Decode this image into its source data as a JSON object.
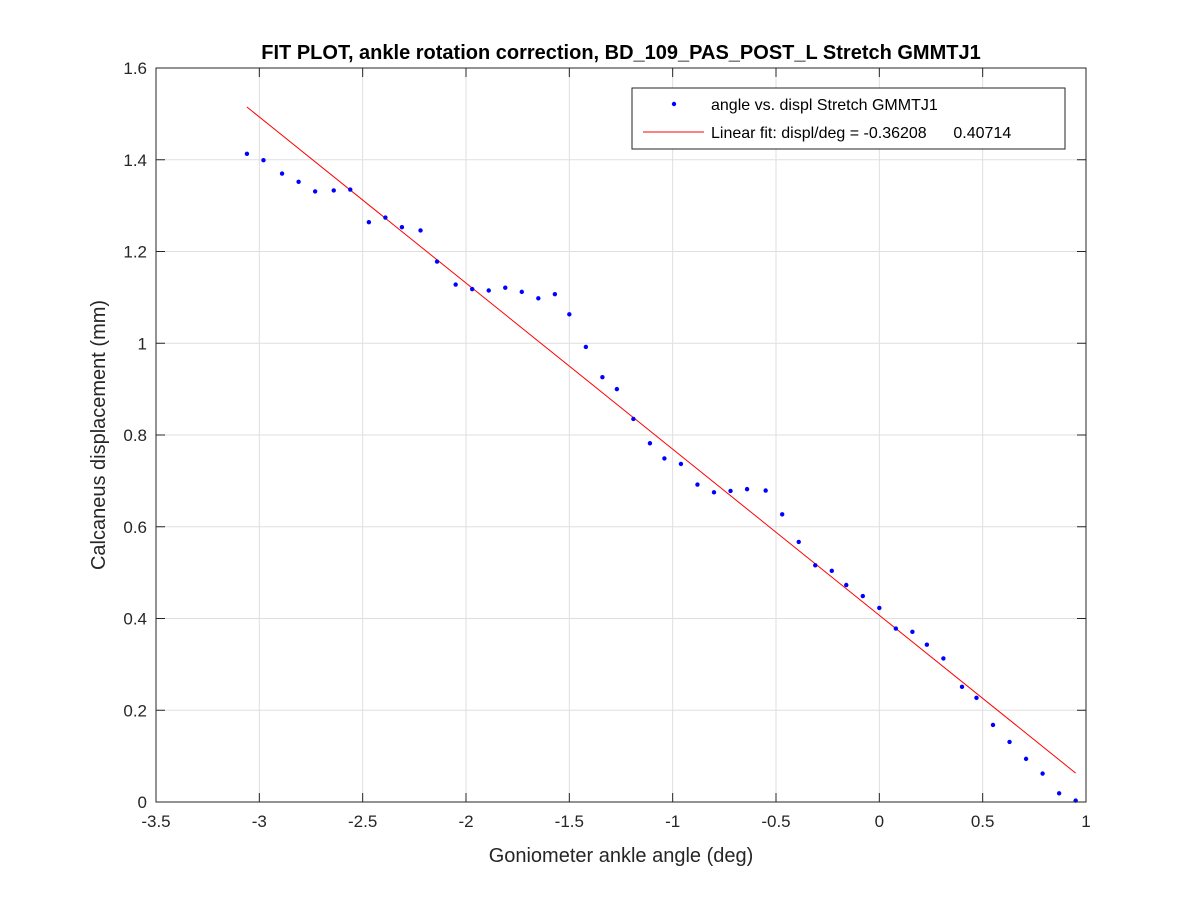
{
  "chart_data": {
    "type": "scatter",
    "title": "FIT PLOT, ankle rotation correction, BD_109_PAS_POST_L Stretch GMMTJ1",
    "xlabel": "Goniometer ankle angle (deg)",
    "ylabel": "Calcaneus displacement (mm)",
    "xlim": [
      -3.5,
      1
    ],
    "ylim": [
      0,
      1.6
    ],
    "xticks": [
      -3.5,
      -3,
      -2.5,
      -2,
      -1.5,
      -1,
      -0.5,
      0,
      0.5,
      1
    ],
    "yticks": [
      0,
      0.2,
      0.4,
      0.6,
      0.8,
      1,
      1.2,
      1.4,
      1.6
    ],
    "xtick_labels": [
      "-3.5",
      "-3",
      "-2.5",
      "-2",
      "-1.5",
      "-1",
      "-0.5",
      "0",
      "0.5",
      "1"
    ],
    "ytick_labels": [
      "0",
      "0.2",
      "0.4",
      "0.6",
      "0.8",
      "1",
      "1.2",
      "1.4",
      "1.6"
    ],
    "grid": true,
    "legend_position": "top-right",
    "series": [
      {
        "name": "angle vs. displ Stretch GMMTJ1",
        "kind": "points",
        "color": "#0000ff",
        "x": [
          -3.06,
          -2.98,
          -2.89,
          -2.81,
          -2.73,
          -2.64,
          -2.56,
          -2.47,
          -2.39,
          -2.31,
          -2.22,
          -2.14,
          -2.05,
          -1.97,
          -1.89,
          -1.81,
          -1.73,
          -1.65,
          -1.57,
          -1.5,
          -1.42,
          -1.34,
          -1.27,
          -1.19,
          -1.11,
          -1.04,
          -0.96,
          -0.88,
          -0.8,
          -0.72,
          -0.64,
          -0.55,
          -0.47,
          -0.39,
          -0.31,
          -0.23,
          -0.16,
          -0.08,
          0.0,
          0.08,
          0.16,
          0.23,
          0.31,
          0.4,
          0.47,
          0.55,
          0.63,
          0.71,
          0.79,
          0.87,
          0.95
        ],
        "y": [
          1.413,
          1.399,
          1.37,
          1.352,
          1.331,
          1.333,
          1.335,
          1.264,
          1.274,
          1.253,
          1.246,
          1.178,
          1.128,
          1.118,
          1.115,
          1.121,
          1.112,
          1.098,
          1.107,
          1.063,
          0.992,
          0.926,
          0.9,
          0.835,
          0.782,
          0.749,
          0.737,
          0.692,
          0.675,
          0.678,
          0.682,
          0.679,
          0.627,
          0.567,
          0.516,
          0.504,
          0.473,
          0.449,
          0.423,
          0.378,
          0.371,
          0.343,
          0.313,
          0.251,
          0.227,
          0.168,
          0.131,
          0.094,
          0.062,
          0.019,
          0.003
        ]
      },
      {
        "name": "Linear fit: displ/deg = -0.36208      0.40714",
        "kind": "line",
        "color": "#ff0000",
        "slope": -0.36208,
        "intercept": 0.40714,
        "x": [
          -3.06,
          0.95
        ],
        "y": [
          1.515,
          0.063
        ]
      }
    ]
  }
}
